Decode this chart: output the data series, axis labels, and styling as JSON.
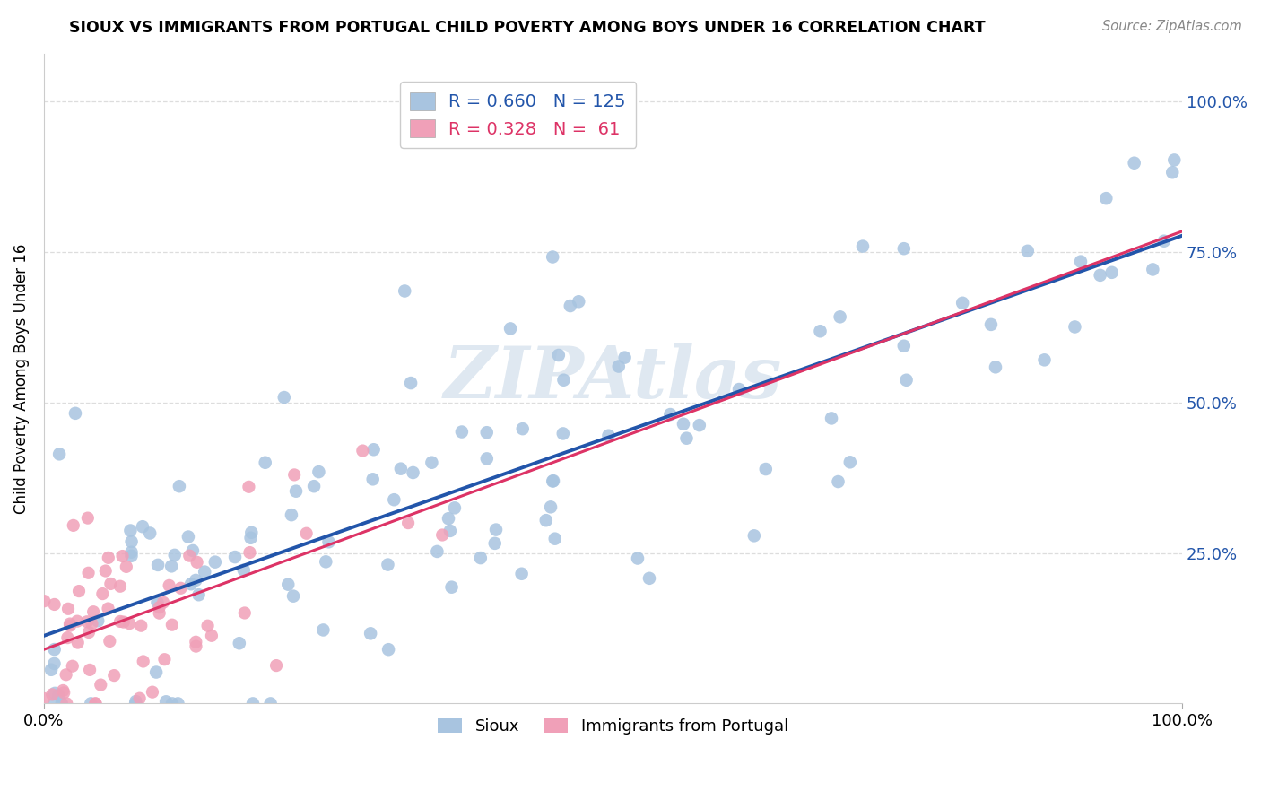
{
  "title": "SIOUX VS IMMIGRANTS FROM PORTUGAL CHILD POVERTY AMONG BOYS UNDER 16 CORRELATION CHART",
  "source": "Source: ZipAtlas.com",
  "ylabel": "Child Poverty Among Boys Under 16",
  "watermark": "ZIPAtlas",
  "blue_R": 0.66,
  "blue_N": 125,
  "pink_R": 0.328,
  "pink_N": 61,
  "blue_color": "#a8c4e0",
  "pink_color": "#f0a0b8",
  "blue_line_color": "#2255aa",
  "pink_line_color": "#dd3366",
  "dashed_line_color": "#ee8899",
  "legend_R_blue_color": "#2255aa",
  "legend_R_pink_color": "#dd3366",
  "ytick_color": "#2255aa",
  "xtick_color": "#000000",
  "grid_color": "#dddddd",
  "background_color": "#ffffff"
}
